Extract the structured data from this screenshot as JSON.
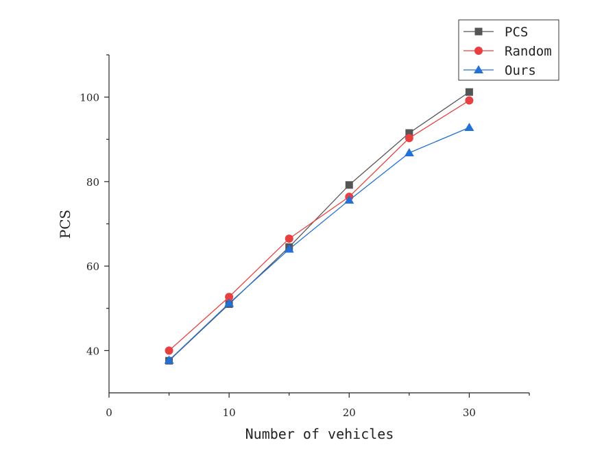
{
  "chart_data": {
    "type": "line",
    "title": "",
    "xlabel": "Number of vehicles",
    "ylabel": "PCS",
    "xlim": [
      0,
      35
    ],
    "ylim": [
      30,
      110
    ],
    "x_ticks": [
      0,
      10,
      20,
      30
    ],
    "y_ticks": [
      40,
      60,
      80,
      100
    ],
    "grid": false,
    "legend_position": "top-right",
    "x": [
      5,
      10,
      15,
      20,
      25,
      30
    ],
    "series": [
      {
        "name": "PCS",
        "color": "#555555",
        "marker": "square",
        "values": [
          37.6,
          51.0,
          64.5,
          79.2,
          91.5,
          101.2
        ]
      },
      {
        "name": "Random",
        "color": "#e84040",
        "marker": "circle",
        "values": [
          40.0,
          52.7,
          66.5,
          76.4,
          90.3,
          99.2
        ]
      },
      {
        "name": "Ours",
        "color": "#2270d8",
        "marker": "triangle",
        "values": [
          37.7,
          51.2,
          64.0,
          75.6,
          86.8,
          92.8
        ]
      }
    ]
  }
}
